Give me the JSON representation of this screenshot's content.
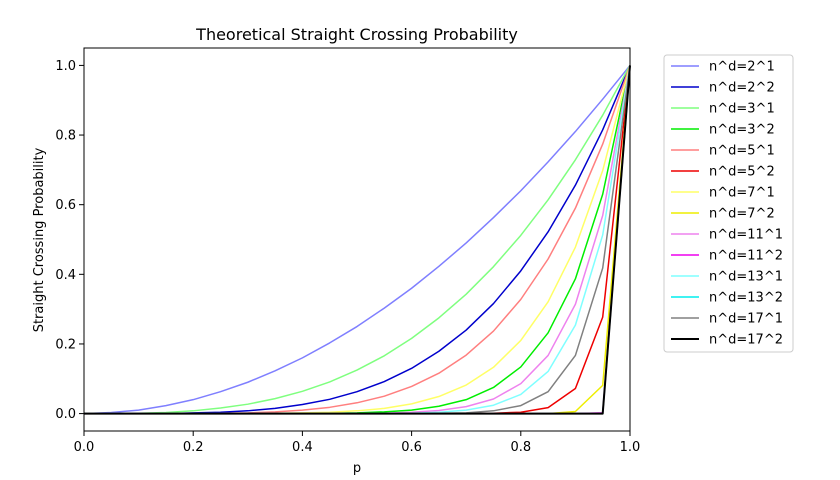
{
  "chart_data": {
    "type": "line",
    "title": "Theoretical Straight Crossing Probability",
    "xlabel": "p",
    "ylabel": "Straight Crossing Probability",
    "xlim": [
      0.0,
      1.0
    ],
    "ylim": [
      -0.05,
      1.05
    ],
    "xticks": [
      "0.0",
      "0.2",
      "0.4",
      "0.6",
      "0.8",
      "1.0"
    ],
    "yticks": [
      "0.0",
      "0.2",
      "0.4",
      "0.6",
      "0.8",
      "1.0"
    ],
    "grid": false,
    "legend_position": "outside-right",
    "x": [
      0.0,
      0.05,
      0.1,
      0.15,
      0.2,
      0.25,
      0.3,
      0.35,
      0.4,
      0.45,
      0.5,
      0.55,
      0.6,
      0.65,
      0.7,
      0.75,
      0.8,
      0.85,
      0.9,
      0.95,
      1.0
    ],
    "series": [
      {
        "name": "n^d=2^1",
        "color": "#7f7fff",
        "width": 1.5,
        "values": [
          0.0,
          0.003,
          0.01,
          0.023,
          0.04,
          0.063,
          0.09,
          0.123,
          0.16,
          0.203,
          0.25,
          0.303,
          0.36,
          0.423,
          0.49,
          0.563,
          0.64,
          0.723,
          0.81,
          0.903,
          1.0
        ]
      },
      {
        "name": "n^d=2^2",
        "color": "#0000cc",
        "width": 1.5,
        "values": [
          0.0,
          0.0,
          0.0,
          0.0,
          0.002,
          0.004,
          0.008,
          0.015,
          0.026,
          0.041,
          0.063,
          0.092,
          0.13,
          0.179,
          0.24,
          0.316,
          0.41,
          0.522,
          0.656,
          0.815,
          1.0
        ]
      },
      {
        "name": "n^d=3^1",
        "color": "#7fff7f",
        "width": 1.5,
        "values": [
          0.0,
          0.0,
          0.001,
          0.003,
          0.008,
          0.016,
          0.027,
          0.043,
          0.064,
          0.091,
          0.125,
          0.166,
          0.216,
          0.275,
          0.343,
          0.422,
          0.512,
          0.614,
          0.729,
          0.857,
          1.0
        ]
      },
      {
        "name": "n^d=3^2",
        "color": "#00ee00",
        "width": 1.5,
        "values": [
          0.0,
          0.0,
          0.0,
          0.0,
          0.0,
          0.0,
          0.0,
          0.0,
          0.0,
          0.001,
          0.002,
          0.005,
          0.01,
          0.021,
          0.04,
          0.075,
          0.134,
          0.232,
          0.387,
          0.63,
          1.0
        ]
      },
      {
        "name": "n^d=5^1",
        "color": "#ff7f7f",
        "width": 1.5,
        "values": [
          0.0,
          0.0,
          0.0,
          0.0,
          0.0,
          0.001,
          0.002,
          0.005,
          0.01,
          0.018,
          0.031,
          0.05,
          0.078,
          0.116,
          0.168,
          0.237,
          0.328,
          0.444,
          0.59,
          0.774,
          1.0
        ]
      },
      {
        "name": "n^d=5^2",
        "color": "#ee0000",
        "width": 1.5,
        "values": [
          0.0,
          0.0,
          0.0,
          0.0,
          0.0,
          0.0,
          0.0,
          0.0,
          0.0,
          0.0,
          0.0,
          0.0,
          0.0,
          0.0,
          0.0,
          0.001,
          0.004,
          0.017,
          0.072,
          0.277,
          1.0
        ]
      },
      {
        "name": "n^d=7^1",
        "color": "#ffff66",
        "width": 1.5,
        "values": [
          0.0,
          0.0,
          0.0,
          0.0,
          0.0,
          0.0,
          0.0,
          0.001,
          0.002,
          0.004,
          0.008,
          0.015,
          0.028,
          0.049,
          0.082,
          0.133,
          0.21,
          0.321,
          0.478,
          0.698,
          1.0
        ]
      },
      {
        "name": "n^d=7^2",
        "color": "#eeee00",
        "width": 1.5,
        "values": [
          0.0,
          0.0,
          0.0,
          0.0,
          0.0,
          0.0,
          0.0,
          0.0,
          0.0,
          0.0,
          0.0,
          0.0,
          0.0,
          0.0,
          0.0,
          0.0,
          0.0,
          0.0,
          0.006,
          0.081,
          1.0
        ]
      },
      {
        "name": "n^d=11^1",
        "color": "#ee82ee",
        "width": 1.5,
        "values": [
          0.0,
          0.0,
          0.0,
          0.0,
          0.0,
          0.0,
          0.0,
          0.0,
          0.0,
          0.0,
          0.0,
          0.001,
          0.004,
          0.009,
          0.02,
          0.042,
          0.086,
          0.167,
          0.314,
          0.569,
          1.0
        ]
      },
      {
        "name": "n^d=11^2",
        "color": "#ee00ee",
        "width": 1.5,
        "values": [
          0.0,
          0.0,
          0.0,
          0.0,
          0.0,
          0.0,
          0.0,
          0.0,
          0.0,
          0.0,
          0.0,
          0.0,
          0.0,
          0.0,
          0.0,
          0.0,
          0.0,
          0.0,
          0.0,
          0.002,
          1.0
        ]
      },
      {
        "name": "n^d=13^1",
        "color": "#7fffff",
        "width": 1.5,
        "values": [
          0.0,
          0.0,
          0.0,
          0.0,
          0.0,
          0.0,
          0.0,
          0.0,
          0.0,
          0.0,
          0.0,
          0.0,
          0.001,
          0.004,
          0.01,
          0.024,
          0.055,
          0.121,
          0.254,
          0.513,
          1.0
        ]
      },
      {
        "name": "n^d=13^2",
        "color": "#00eeee",
        "width": 1.5,
        "values": [
          0.0,
          0.0,
          0.0,
          0.0,
          0.0,
          0.0,
          0.0,
          0.0,
          0.0,
          0.0,
          0.0,
          0.0,
          0.0,
          0.0,
          0.0,
          0.0,
          0.0,
          0.0,
          0.0,
          0.0,
          1.0
        ]
      },
      {
        "name": "n^d=17^1",
        "color": "#808080",
        "width": 1.5,
        "values": [
          0.0,
          0.0,
          0.0,
          0.0,
          0.0,
          0.0,
          0.0,
          0.0,
          0.0,
          0.0,
          0.0,
          0.0,
          0.0,
          0.001,
          0.002,
          0.008,
          0.023,
          0.063,
          0.167,
          0.418,
          1.0
        ]
      },
      {
        "name": "n^d=17^2",
        "color": "#000000",
        "width": 2,
        "values": [
          0.0,
          0.0,
          0.0,
          0.0,
          0.0,
          0.0,
          0.0,
          0.0,
          0.0,
          0.0,
          0.0,
          0.0,
          0.0,
          0.0,
          0.0,
          0.0,
          0.0,
          0.0,
          0.0,
          0.0,
          1.0
        ]
      }
    ]
  }
}
